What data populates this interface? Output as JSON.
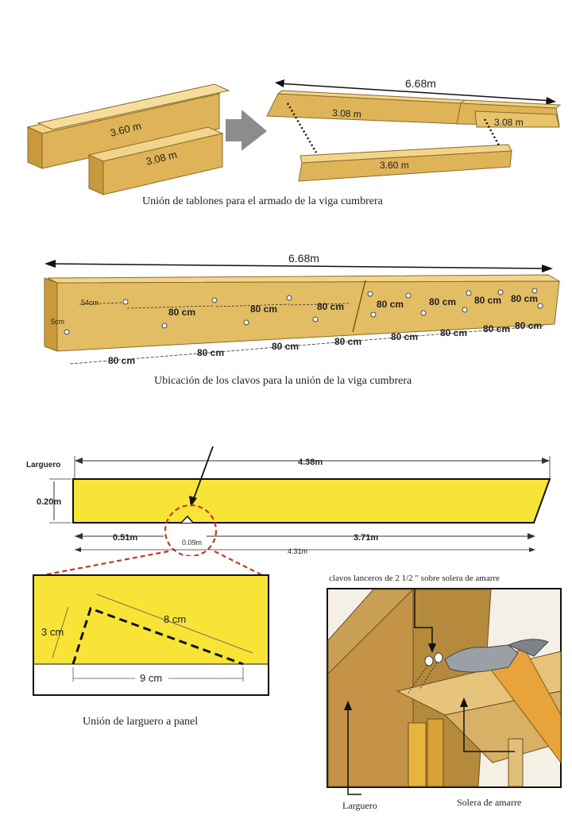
{
  "section1": {
    "caption": "Unión de tablones para el armado de la viga cumbrera",
    "plank_long": "3.60 m",
    "plank_short": "3.08 m",
    "total_length": "6.68m",
    "joined_left": "3.08 m",
    "joined_right": "3.08 m",
    "lower_plank": "3.60 m"
  },
  "section2": {
    "caption": "Ubicación de los clavos para la unión de la viga cumbrera",
    "total_length": "6.68m",
    "edge_top": "54cm",
    "edge_side": "5cm",
    "upper_spacings": [
      "80 cm",
      "80 cm",
      "80 cm",
      "80 cm",
      "80 cm",
      "80 cm",
      "80 cm"
    ],
    "lower_spacings": [
      "80 cm",
      "80 cm",
      "80 cm",
      "80 cm",
      "80 cm",
      "80 cm",
      "80 cm",
      "80 cm"
    ]
  },
  "section3": {
    "title": "Larguero",
    "total_length": "4.38m",
    "height": "0.20m",
    "left_distance": "0.51m",
    "notch_width": "0.09m",
    "right_distance": "3.71m",
    "bottom_length": "4.31m",
    "color": "#f7e436"
  },
  "section4": {
    "caption": "Unión de larguero a panel",
    "side": "3 cm",
    "diagonal": "8 cm",
    "base": "9 cm"
  },
  "section5": {
    "title": "clavos lanceros de 2 1/2 \" sobre solera de amarre",
    "label_left": "Larguero",
    "label_right": "Solera de amarre"
  }
}
